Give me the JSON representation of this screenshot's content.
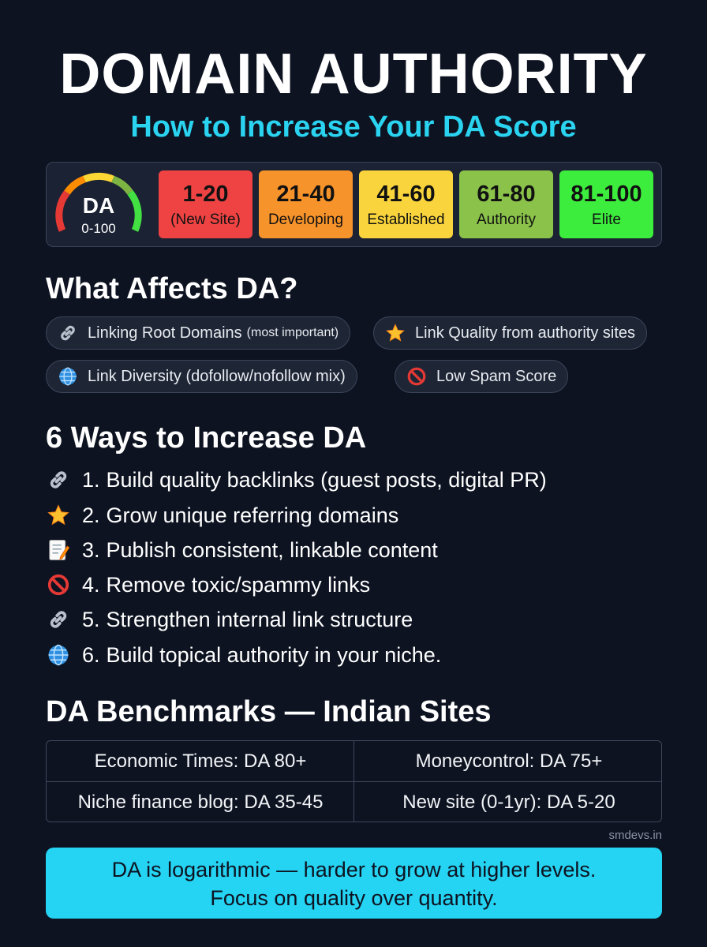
{
  "header": {
    "title": "DOMAIN AUTHORITY",
    "subtitle": "How to Increase Your DA Score"
  },
  "scale": {
    "gauge": {
      "label": "DA",
      "range": "0-100"
    },
    "tiers": [
      {
        "range": "1-20",
        "label": "(New Site)",
        "color": "#ef4343"
      },
      {
        "range": "21-40",
        "label": "Developing",
        "color": "#f7932b"
      },
      {
        "range": "41-60",
        "label": "Established",
        "color": "#f9d43c"
      },
      {
        "range": "61-80",
        "label": "Authority",
        "color": "#8bc34a"
      },
      {
        "range": "81-100",
        "label": "Elite",
        "color": "#3ded3d"
      }
    ]
  },
  "affects": {
    "heading": "What Affects DA?",
    "factors": [
      {
        "icon": "link-icon",
        "text": "Linking Root Domains",
        "note": "(most important)"
      },
      {
        "icon": "star-icon",
        "text": "Link Quality from authority sites"
      },
      {
        "icon": "globe-icon",
        "text": "Link Diversity (dofollow/nofollow mix)"
      },
      {
        "icon": "prohibited-icon",
        "text": "Low Spam Score"
      }
    ]
  },
  "ways": {
    "heading": "6 Ways to Increase DA",
    "items": [
      {
        "icon": "link-icon",
        "num": "1.",
        "text": "Build quality backlinks (guest posts, digital PR)"
      },
      {
        "icon": "star-icon",
        "num": "2.",
        "text": "Grow unique referring domains"
      },
      {
        "icon": "memo-icon",
        "num": "3.",
        "text": "Publish consistent, linkable content"
      },
      {
        "icon": "prohibited-icon",
        "num": "4.",
        "text": "Remove toxic/spammy links"
      },
      {
        "icon": "link-icon",
        "num": "5.",
        "text": "Strengthen internal link structure"
      },
      {
        "icon": "globe-icon",
        "num": "6.",
        "text": "Build topical authority in your niche."
      }
    ]
  },
  "benchmarks": {
    "heading": "DA Benchmarks — Indian Sites",
    "cells": [
      "Economic Times: DA 80+",
      "Moneycontrol: DA 75+",
      "Niche finance blog: DA 35-45",
      "New site (0-1yr): DA 5-20"
    ]
  },
  "credit": "smdevs.in",
  "callout": {
    "line1": "DA is logarithmic — harder to grow at higher levels.",
    "line2": "Focus on quality over quantity."
  }
}
